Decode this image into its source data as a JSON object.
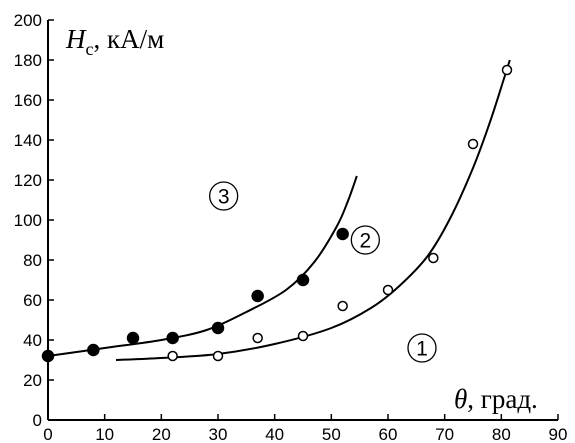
{
  "chart_data": {
    "type": "scatter",
    "xlabel": {
      "symbol": "θ",
      "unit": ", град."
    },
    "ylabel": {
      "symbol": "H",
      "subscript": "c",
      "unit": ", кА/м"
    },
    "xlim": [
      0,
      90
    ],
    "ylim": [
      0,
      200
    ],
    "xticks": [
      0,
      10,
      20,
      30,
      40,
      50,
      60,
      70,
      80,
      90
    ],
    "yticks": [
      0,
      20,
      40,
      60,
      80,
      100,
      120,
      140,
      160,
      180,
      200
    ],
    "grid": false,
    "series": [
      {
        "label": "3",
        "marker": "filled",
        "points": [
          [
            0,
            32
          ],
          [
            8,
            35
          ],
          [
            15,
            41
          ],
          [
            22,
            41
          ],
          [
            30,
            46
          ],
          [
            37,
            62
          ],
          [
            45,
            70
          ],
          [
            52,
            93
          ]
        ],
        "curve": [
          [
            0,
            32
          ],
          [
            10,
            36
          ],
          [
            20,
            40
          ],
          [
            28,
            45
          ],
          [
            35,
            54
          ],
          [
            42,
            65
          ],
          [
            47,
            79
          ],
          [
            51,
            97
          ],
          [
            53,
            110
          ],
          [
            54.5,
            122
          ]
        ],
        "label_at": [
          31,
          112
        ]
      },
      {
        "label": "2",
        "marker": "open",
        "points": [
          [
            22,
            32
          ],
          [
            30,
            32
          ],
          [
            37,
            41
          ],
          [
            45,
            42
          ],
          [
            52,
            57
          ],
          [
            60,
            65
          ],
          [
            68,
            81
          ],
          [
            75,
            138
          ],
          [
            81,
            175
          ]
        ],
        "curve": [
          [
            12,
            30
          ],
          [
            20,
            31
          ],
          [
            30,
            33
          ],
          [
            40,
            38
          ],
          [
            50,
            46
          ],
          [
            57,
            56
          ],
          [
            62,
            67
          ],
          [
            67,
            82
          ],
          [
            71,
            101
          ],
          [
            75,
            126
          ],
          [
            78,
            149
          ],
          [
            80.5,
            171
          ],
          [
            81.5,
            180
          ]
        ],
        "label_at": [
          56,
          90
        ]
      },
      {
        "label": "1",
        "label_at": [
          66,
          36
        ]
      }
    ]
  }
}
